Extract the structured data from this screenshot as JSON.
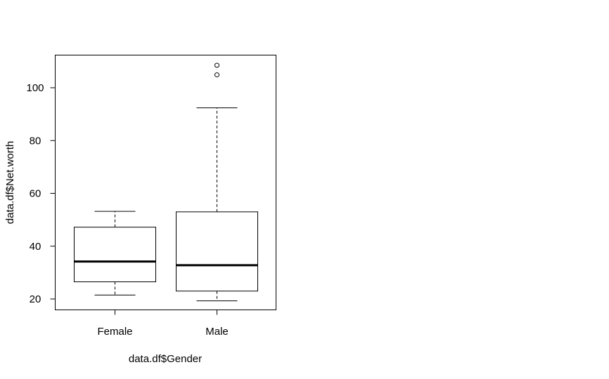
{
  "chart_data": {
    "type": "boxplot",
    "xlabel": "data.df$Gender",
    "ylabel": "data.df$Net.worth",
    "categories": [
      "Female",
      "Male"
    ],
    "ylim": [
      15,
      112
    ],
    "yticks": [
      20,
      40,
      60,
      80,
      100
    ],
    "boxes": [
      {
        "name": "Female",
        "whisker_low": 21.5,
        "q1": 26.5,
        "median": 34.2,
        "q3": 47.2,
        "whisker_high": 53.2,
        "outliers": []
      },
      {
        "name": "Male",
        "whisker_low": 19.3,
        "q1": 23.0,
        "median": 32.8,
        "q3": 53.0,
        "whisker_high": 92.4,
        "outliers": [
          104.9,
          108.5
        ]
      }
    ]
  }
}
